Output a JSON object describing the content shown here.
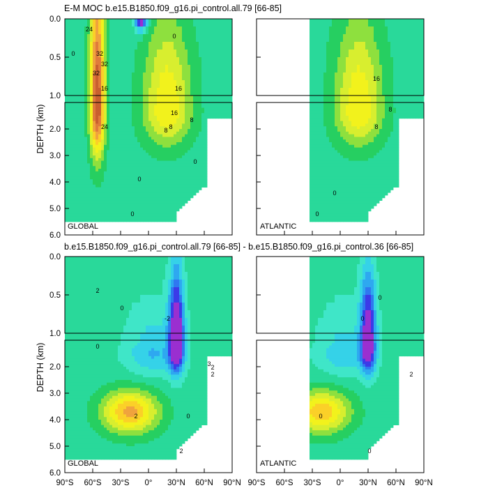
{
  "page": {
    "background": "#ffffff"
  },
  "colors": {
    "frame": "#000000",
    "contour_line": "#000000",
    "panel_fill_missing": "#ffffff",
    "palette": [
      "#9a2fd0",
      "#3b3be8",
      "#2f78f0",
      "#2ea8f0",
      "#35d2e8",
      "#3fe6c8",
      "#29d99a",
      "#26cf61",
      "#8ee03e",
      "#d8ee2f",
      "#f2f21c",
      "#fbd028",
      "#f0a33d",
      "#e07b3b",
      "#c95f2f"
    ]
  },
  "titles": {
    "top": "E-M MOC  b.e15.B1850.f09_g16.pi_control.all.79 [66-85]",
    "bottom": "b.e15.B1850.f09_g16.pi_control.all.79 [66-85] - b.e15.B1850.f09_g16.pi_control.36 [66-85]"
  },
  "region_labels": {
    "global": "GLOBAL",
    "atlantic": "ATLANTIC"
  },
  "chart_data": [
    {
      "type": "heatmap",
      "title": "E-M MOC  b.e15.B1850.f09_g16.pi_control.all.79 [66-85]",
      "panel": "GLOBAL",
      "ylabel": "DEPTH (km)",
      "xlim": [
        -90,
        90
      ],
      "ylim_upper": [
        0.0,
        1.0
      ],
      "ylim_lower": [
        1.0,
        6.0
      ],
      "yticks_upper": [
        "0.0",
        "0.5",
        "1.0"
      ],
      "yticks_lower": [
        "2.0",
        "3.0",
        "4.0",
        "5.0",
        "6.0"
      ],
      "contour_labels": [
        "24",
        "32",
        "32",
        "32",
        "16",
        "8",
        "8",
        "16",
        "24",
        "16",
        "8",
        "0",
        "0",
        "0",
        "0",
        "0"
      ],
      "colors": [
        "#9a2fd0",
        "#3b3be8",
        "#2f78f0",
        "#2ea8f0",
        "#35d2e8",
        "#3fe6c8",
        "#29d99a",
        "#26cf61",
        "#8ee03e",
        "#d8ee2f",
        "#f2f21c",
        "#fbd028",
        "#f0a33d",
        "#e07b3b",
        "#c95f2f"
      ]
    },
    {
      "type": "heatmap",
      "panel": "ATLANTIC",
      "xlim": [
        -90,
        90
      ],
      "ylim_upper": [
        0.0,
        1.0
      ],
      "ylim_lower": [
        1.0,
        6.0
      ],
      "contour_labels": [
        "16",
        "8",
        "8",
        "0",
        "0"
      ]
    },
    {
      "type": "heatmap",
      "title": "b.e15.B1850.f09_g16.pi_control.all.79 [66-85] - b.e15.B1850.f09_g16.pi_control.36 [66-85]",
      "panel": "GLOBAL",
      "ylabel": "DEPTH (km)",
      "xlim": [
        -90,
        90
      ],
      "xticks": [
        "90°S",
        "60°S",
        "30°S",
        "0°",
        "30°N",
        "60°N",
        "90°N"
      ],
      "ylim_upper": [
        0.0,
        1.0
      ],
      "ylim_lower": [
        1.0,
        6.0
      ],
      "contour_labels": [
        "2",
        "0",
        "2",
        "2",
        "-2",
        "3",
        "2",
        "0",
        "0",
        "2"
      ]
    },
    {
      "type": "heatmap",
      "panel": "ATLANTIC",
      "xlim": [
        -90,
        90
      ],
      "xticks": [
        "90°S",
        "60°S",
        "30°S",
        "0°",
        "30°N",
        "60°N",
        "90°N"
      ],
      "ylim_upper": [
        0.0,
        1.0
      ],
      "ylim_lower": [
        1.0,
        6.0
      ],
      "contour_labels": [
        "0",
        "0",
        "2",
        "0",
        "0"
      ]
    }
  ]
}
